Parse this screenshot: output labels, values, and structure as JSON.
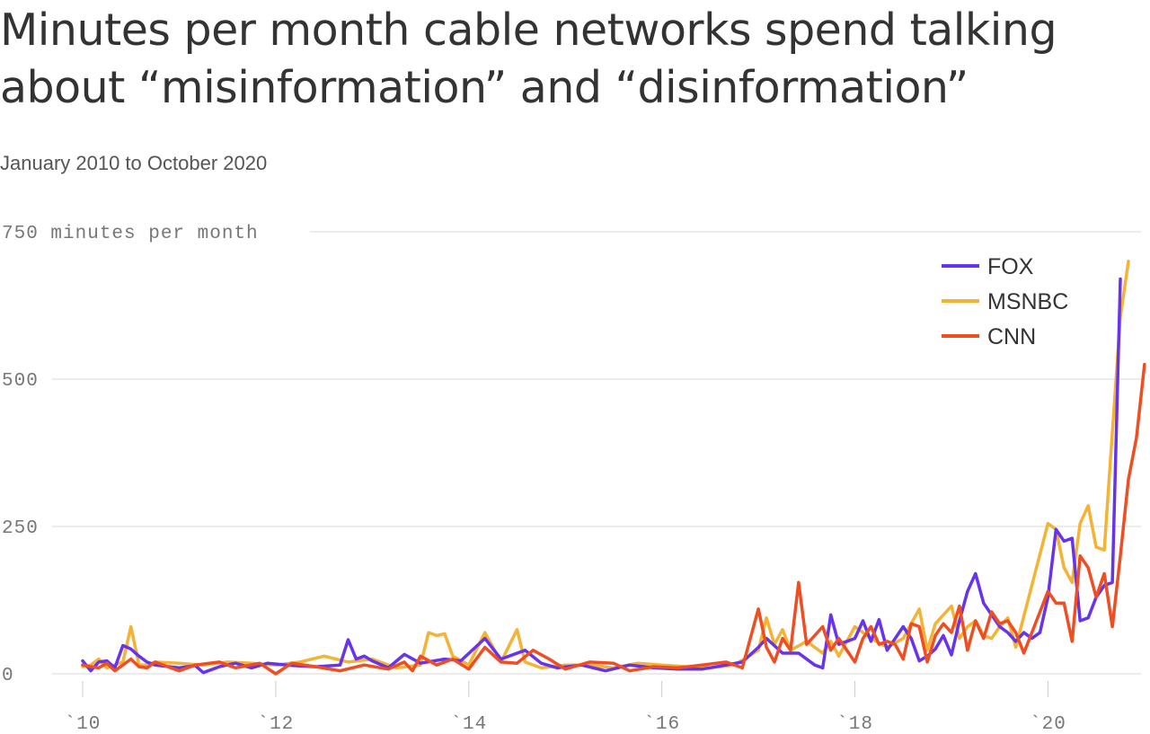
{
  "page": {
    "title": "Minutes per month cable networks spend talking about “misinformation” and “disinformation”",
    "subtitle": "January 2010 to October 2020"
  },
  "chart_data": {
    "type": "line",
    "title": "Minutes per month cable networks spend talking about “misinformation” and “disinformation”",
    "subtitle": "January 2010 to October 2020",
    "ylabel": "minutes per month",
    "ylim": [
      0,
      750
    ],
    "yticks": [
      0,
      250,
      500,
      750
    ],
    "ytick_labels": [
      "0",
      "250",
      "500",
      "750 minutes per month"
    ],
    "xlim": [
      "2010-01",
      "2020-10"
    ],
    "xticks": [
      "2010-01",
      "2012-01",
      "2014-01",
      "2016-01",
      "2018-01",
      "2020-01"
    ],
    "xtick_labels": [
      "`10",
      "`12",
      "`14",
      "`16",
      "`18",
      "`20"
    ],
    "grid": true,
    "legend_position": "top-right",
    "series": [
      {
        "name": "FOX",
        "color": "#6633ee",
        "points": [
          [
            "2010-01",
            22
          ],
          [
            "2010-02",
            5
          ],
          [
            "2010-03",
            20
          ],
          [
            "2010-04",
            22
          ],
          [
            "2010-05",
            10
          ],
          [
            "2010-06",
            48
          ],
          [
            "2010-07",
            42
          ],
          [
            "2010-08",
            30
          ],
          [
            "2010-09",
            20
          ],
          [
            "2010-10",
            15
          ],
          [
            "2011-01",
            10
          ],
          [
            "2011-03",
            14
          ],
          [
            "2011-04",
            2
          ],
          [
            "2011-06",
            12
          ],
          [
            "2011-08",
            18
          ],
          [
            "2011-10",
            10
          ],
          [
            "2011-12",
            18
          ],
          [
            "2012-03",
            14
          ],
          [
            "2012-06",
            12
          ],
          [
            "2012-09",
            15
          ],
          [
            "2012-10",
            58
          ],
          [
            "2012-11",
            25
          ],
          [
            "2012-12",
            30
          ],
          [
            "2013-01",
            22
          ],
          [
            "2013-03",
            10
          ],
          [
            "2013-05",
            33
          ],
          [
            "2013-07",
            18
          ],
          [
            "2013-10",
            25
          ],
          [
            "2013-12",
            22
          ],
          [
            "2014-03",
            60
          ],
          [
            "2014-05",
            25
          ],
          [
            "2014-08",
            40
          ],
          [
            "2014-10",
            18
          ],
          [
            "2014-12",
            10
          ],
          [
            "2015-03",
            15
          ],
          [
            "2015-06",
            5
          ],
          [
            "2015-09",
            15
          ],
          [
            "2015-12",
            10
          ],
          [
            "2016-03",
            8
          ],
          [
            "2016-06",
            8
          ],
          [
            "2016-09",
            15
          ],
          [
            "2016-11",
            20
          ],
          [
            "2017-01",
            45
          ],
          [
            "2017-02",
            60
          ],
          [
            "2017-04",
            35
          ],
          [
            "2017-06",
            35
          ],
          [
            "2017-08",
            15
          ],
          [
            "2017-09",
            10
          ],
          [
            "2017-10",
            100
          ],
          [
            "2017-11",
            50
          ],
          [
            "2018-01",
            60
          ],
          [
            "2018-02",
            90
          ],
          [
            "2018-03",
            55
          ],
          [
            "2018-04",
            92
          ],
          [
            "2018-05",
            40
          ],
          [
            "2018-07",
            80
          ],
          [
            "2018-08",
            60
          ],
          [
            "2018-09",
            22
          ],
          [
            "2018-10",
            30
          ],
          [
            "2018-11",
            42
          ],
          [
            "2018-12",
            65
          ],
          [
            "2019-01",
            32
          ],
          [
            "2019-02",
            90
          ],
          [
            "2019-03",
            140
          ],
          [
            "2019-04",
            170
          ],
          [
            "2019-05",
            120
          ],
          [
            "2019-06",
            100
          ],
          [
            "2019-07",
            80
          ],
          [
            "2019-08",
            70
          ],
          [
            "2019-09",
            55
          ],
          [
            "2019-10",
            70
          ],
          [
            "2019-11",
            60
          ],
          [
            "2019-12",
            70
          ],
          [
            "2020-01",
            130
          ],
          [
            "2020-02",
            245
          ],
          [
            "2020-03",
            225
          ],
          [
            "2020-04",
            230
          ],
          [
            "2020-05",
            90
          ],
          [
            "2020-06",
            95
          ],
          [
            "2020-07",
            130
          ],
          [
            "2020-08",
            150
          ],
          [
            "2020-09",
            155
          ],
          [
            "2020-10",
            670
          ]
        ]
      },
      {
        "name": "MSNBC",
        "color": "#f5b335",
        "points": [
          [
            "2010-01",
            12
          ],
          [
            "2010-02",
            15
          ],
          [
            "2010-03",
            25
          ],
          [
            "2010-04",
            10
          ],
          [
            "2010-05",
            15
          ],
          [
            "2010-06",
            20
          ],
          [
            "2010-07",
            80
          ],
          [
            "2010-08",
            15
          ],
          [
            "2010-09",
            15
          ],
          [
            "2010-10",
            20
          ],
          [
            "2011-01",
            18
          ],
          [
            "2011-04",
            15
          ],
          [
            "2011-07",
            20
          ],
          [
            "2011-10",
            18
          ],
          [
            "2012-01",
            15
          ],
          [
            "2012-04",
            20
          ],
          [
            "2012-07",
            30
          ],
          [
            "2012-10",
            20
          ],
          [
            "2013-01",
            25
          ],
          [
            "2013-04",
            10
          ],
          [
            "2013-07",
            15
          ],
          [
            "2013-08",
            70
          ],
          [
            "2013-09",
            65
          ],
          [
            "2013-10",
            68
          ],
          [
            "2013-11",
            30
          ],
          [
            "2014-01",
            15
          ],
          [
            "2014-03",
            70
          ],
          [
            "2014-05",
            20
          ],
          [
            "2014-07",
            75
          ],
          [
            "2014-08",
            20
          ],
          [
            "2014-10",
            10
          ],
          [
            "2015-01",
            15
          ],
          [
            "2015-04",
            15
          ],
          [
            "2015-07",
            10
          ],
          [
            "2015-10",
            18
          ],
          [
            "2016-01",
            15
          ],
          [
            "2016-04",
            12
          ],
          [
            "2016-07",
            10
          ],
          [
            "2016-10",
            15
          ],
          [
            "2017-01",
            40
          ],
          [
            "2017-02",
            95
          ],
          [
            "2017-03",
            50
          ],
          [
            "2017-04",
            75
          ],
          [
            "2017-05",
            40
          ],
          [
            "2017-07",
            55
          ],
          [
            "2017-09",
            35
          ],
          [
            "2017-10",
            55
          ],
          [
            "2017-11",
            30
          ],
          [
            "2018-01",
            80
          ],
          [
            "2018-03",
            60
          ],
          [
            "2018-05",
            45
          ],
          [
            "2018-07",
            60
          ],
          [
            "2018-09",
            110
          ],
          [
            "2018-10",
            40
          ],
          [
            "2018-11",
            85
          ],
          [
            "2018-12",
            100
          ],
          [
            "2019-01",
            115
          ],
          [
            "2019-02",
            60
          ],
          [
            "2019-03",
            80
          ],
          [
            "2019-04",
            90
          ],
          [
            "2019-05",
            65
          ],
          [
            "2019-06",
            60
          ],
          [
            "2019-07",
            80
          ],
          [
            "2019-08",
            95
          ],
          [
            "2019-09",
            45
          ],
          [
            "2020-01",
            255
          ],
          [
            "2020-02",
            245
          ],
          [
            "2020-03",
            180
          ],
          [
            "2020-04",
            155
          ],
          [
            "2020-05",
            255
          ],
          [
            "2020-06",
            285
          ],
          [
            "2020-07",
            215
          ],
          [
            "2020-08",
            210
          ],
          [
            "2020-09",
            410
          ],
          [
            "2020-10",
            605
          ],
          [
            "2020-11",
            700
          ]
        ]
      },
      {
        "name": "CNN",
        "color": "#ee4e22",
        "points": [
          [
            "2010-01",
            15
          ],
          [
            "2010-02",
            12
          ],
          [
            "2010-03",
            10
          ],
          [
            "2010-04",
            18
          ],
          [
            "2010-05",
            5
          ],
          [
            "2010-06",
            15
          ],
          [
            "2010-07",
            25
          ],
          [
            "2010-08",
            12
          ],
          [
            "2010-09",
            10
          ],
          [
            "2010-10",
            20
          ],
          [
            "2011-01",
            5
          ],
          [
            "2011-03",
            15
          ],
          [
            "2011-06",
            20
          ],
          [
            "2011-08",
            10
          ],
          [
            "2011-11",
            18
          ],
          [
            "2012-01",
            0
          ],
          [
            "2012-03",
            18
          ],
          [
            "2012-06",
            12
          ],
          [
            "2012-09",
            5
          ],
          [
            "2012-12",
            15
          ],
          [
            "2013-03",
            8
          ],
          [
            "2013-05",
            20
          ],
          [
            "2013-06",
            5
          ],
          [
            "2013-07",
            30
          ],
          [
            "2013-09",
            15
          ],
          [
            "2013-11",
            25
          ],
          [
            "2014-01",
            8
          ],
          [
            "2014-03",
            45
          ],
          [
            "2014-05",
            20
          ],
          [
            "2014-07",
            18
          ],
          [
            "2014-09",
            40
          ],
          [
            "2014-11",
            25
          ],
          [
            "2015-01",
            8
          ],
          [
            "2015-04",
            20
          ],
          [
            "2015-07",
            18
          ],
          [
            "2015-09",
            5
          ],
          [
            "2015-12",
            12
          ],
          [
            "2016-03",
            10
          ],
          [
            "2016-06",
            15
          ],
          [
            "2016-09",
            20
          ],
          [
            "2016-11",
            10
          ],
          [
            "2017-01",
            110
          ],
          [
            "2017-02",
            45
          ],
          [
            "2017-03",
            20
          ],
          [
            "2017-04",
            60
          ],
          [
            "2017-05",
            40
          ],
          [
            "2017-06",
            155
          ],
          [
            "2017-07",
            50
          ],
          [
            "2017-08",
            65
          ],
          [
            "2017-09",
            80
          ],
          [
            "2017-10",
            40
          ],
          [
            "2017-11",
            60
          ],
          [
            "2018-01",
            20
          ],
          [
            "2018-02",
            60
          ],
          [
            "2018-03",
            80
          ],
          [
            "2018-04",
            50
          ],
          [
            "2018-05",
            55
          ],
          [
            "2018-06",
            50
          ],
          [
            "2018-07",
            25
          ],
          [
            "2018-08",
            85
          ],
          [
            "2018-09",
            80
          ],
          [
            "2018-10",
            20
          ],
          [
            "2018-11",
            65
          ],
          [
            "2018-12",
            85
          ],
          [
            "2019-01",
            70
          ],
          [
            "2019-02",
            115
          ],
          [
            "2019-03",
            40
          ],
          [
            "2019-04",
            90
          ],
          [
            "2019-05",
            60
          ],
          [
            "2019-06",
            105
          ],
          [
            "2019-07",
            85
          ],
          [
            "2019-08",
            90
          ],
          [
            "2019-09",
            70
          ],
          [
            "2019-10",
            35
          ],
          [
            "2020-01",
            140
          ],
          [
            "2020-02",
            120
          ],
          [
            "2020-03",
            120
          ],
          [
            "2020-04",
            55
          ],
          [
            "2020-05",
            200
          ],
          [
            "2020-06",
            180
          ],
          [
            "2020-07",
            130
          ],
          [
            "2020-08",
            170
          ],
          [
            "2020-09",
            80
          ],
          [
            "2020-10",
            200
          ],
          [
            "2020-11",
            330
          ],
          [
            "2020-12",
            400
          ],
          [
            "2021-01",
            525
          ]
        ]
      }
    ]
  }
}
